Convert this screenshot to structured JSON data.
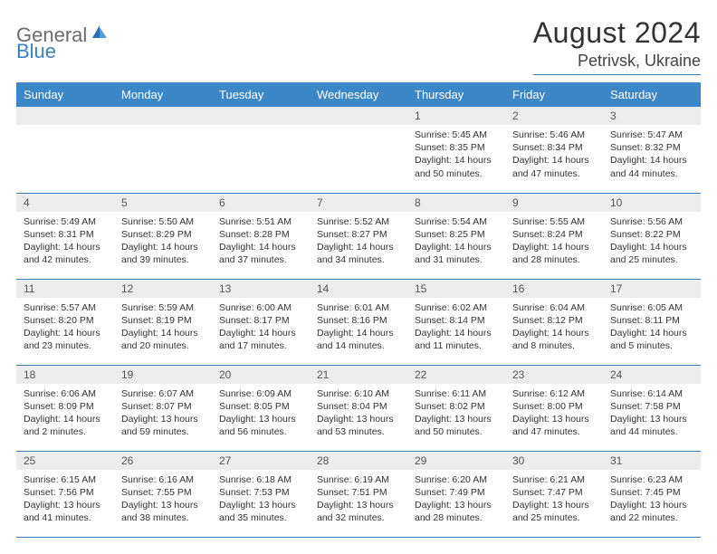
{
  "brand": {
    "part1": "General",
    "part2": "Blue"
  },
  "title": "August 2024",
  "location": "Petrivsk, Ukraine",
  "colors": {
    "header_bg": "#3b87c8",
    "header_text": "#ffffff",
    "daynum_bg": "#ececec",
    "rule": "#3b7fc4",
    "logo_gray": "#6b6b6b",
    "logo_blue": "#3b7fc4"
  },
  "weekdays": [
    "Sunday",
    "Monday",
    "Tuesday",
    "Wednesday",
    "Thursday",
    "Friday",
    "Saturday"
  ],
  "weeks": [
    [
      null,
      null,
      null,
      null,
      {
        "n": "1",
        "sr": "5:45 AM",
        "ss": "8:35 PM",
        "dl": "14 hours and 50 minutes."
      },
      {
        "n": "2",
        "sr": "5:46 AM",
        "ss": "8:34 PM",
        "dl": "14 hours and 47 minutes."
      },
      {
        "n": "3",
        "sr": "5:47 AM",
        "ss": "8:32 PM",
        "dl": "14 hours and 44 minutes."
      }
    ],
    [
      {
        "n": "4",
        "sr": "5:49 AM",
        "ss": "8:31 PM",
        "dl": "14 hours and 42 minutes."
      },
      {
        "n": "5",
        "sr": "5:50 AM",
        "ss": "8:29 PM",
        "dl": "14 hours and 39 minutes."
      },
      {
        "n": "6",
        "sr": "5:51 AM",
        "ss": "8:28 PM",
        "dl": "14 hours and 37 minutes."
      },
      {
        "n": "7",
        "sr": "5:52 AM",
        "ss": "8:27 PM",
        "dl": "14 hours and 34 minutes."
      },
      {
        "n": "8",
        "sr": "5:54 AM",
        "ss": "8:25 PM",
        "dl": "14 hours and 31 minutes."
      },
      {
        "n": "9",
        "sr": "5:55 AM",
        "ss": "8:24 PM",
        "dl": "14 hours and 28 minutes."
      },
      {
        "n": "10",
        "sr": "5:56 AM",
        "ss": "8:22 PM",
        "dl": "14 hours and 25 minutes."
      }
    ],
    [
      {
        "n": "11",
        "sr": "5:57 AM",
        "ss": "8:20 PM",
        "dl": "14 hours and 23 minutes."
      },
      {
        "n": "12",
        "sr": "5:59 AM",
        "ss": "8:19 PM",
        "dl": "14 hours and 20 minutes."
      },
      {
        "n": "13",
        "sr": "6:00 AM",
        "ss": "8:17 PM",
        "dl": "14 hours and 17 minutes."
      },
      {
        "n": "14",
        "sr": "6:01 AM",
        "ss": "8:16 PM",
        "dl": "14 hours and 14 minutes."
      },
      {
        "n": "15",
        "sr": "6:02 AM",
        "ss": "8:14 PM",
        "dl": "14 hours and 11 minutes."
      },
      {
        "n": "16",
        "sr": "6:04 AM",
        "ss": "8:12 PM",
        "dl": "14 hours and 8 minutes."
      },
      {
        "n": "17",
        "sr": "6:05 AM",
        "ss": "8:11 PM",
        "dl": "14 hours and 5 minutes."
      }
    ],
    [
      {
        "n": "18",
        "sr": "6:06 AM",
        "ss": "8:09 PM",
        "dl": "14 hours and 2 minutes."
      },
      {
        "n": "19",
        "sr": "6:07 AM",
        "ss": "8:07 PM",
        "dl": "13 hours and 59 minutes."
      },
      {
        "n": "20",
        "sr": "6:09 AM",
        "ss": "8:05 PM",
        "dl": "13 hours and 56 minutes."
      },
      {
        "n": "21",
        "sr": "6:10 AM",
        "ss": "8:04 PM",
        "dl": "13 hours and 53 minutes."
      },
      {
        "n": "22",
        "sr": "6:11 AM",
        "ss": "8:02 PM",
        "dl": "13 hours and 50 minutes."
      },
      {
        "n": "23",
        "sr": "6:12 AM",
        "ss": "8:00 PM",
        "dl": "13 hours and 47 minutes."
      },
      {
        "n": "24",
        "sr": "6:14 AM",
        "ss": "7:58 PM",
        "dl": "13 hours and 44 minutes."
      }
    ],
    [
      {
        "n": "25",
        "sr": "6:15 AM",
        "ss": "7:56 PM",
        "dl": "13 hours and 41 minutes."
      },
      {
        "n": "26",
        "sr": "6:16 AM",
        "ss": "7:55 PM",
        "dl": "13 hours and 38 minutes."
      },
      {
        "n": "27",
        "sr": "6:18 AM",
        "ss": "7:53 PM",
        "dl": "13 hours and 35 minutes."
      },
      {
        "n": "28",
        "sr": "6:19 AM",
        "ss": "7:51 PM",
        "dl": "13 hours and 32 minutes."
      },
      {
        "n": "29",
        "sr": "6:20 AM",
        "ss": "7:49 PM",
        "dl": "13 hours and 28 minutes."
      },
      {
        "n": "30",
        "sr": "6:21 AM",
        "ss": "7:47 PM",
        "dl": "13 hours and 25 minutes."
      },
      {
        "n": "31",
        "sr": "6:23 AM",
        "ss": "7:45 PM",
        "dl": "13 hours and 22 minutes."
      }
    ]
  ],
  "labels": {
    "sunrise": "Sunrise:",
    "sunset": "Sunset:",
    "daylight": "Daylight:"
  }
}
